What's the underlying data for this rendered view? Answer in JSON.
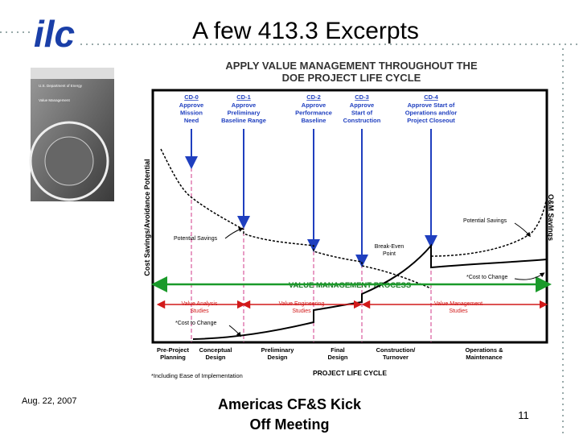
{
  "header": {
    "logo": "ilc",
    "title": "A few 413.3 Excerpts"
  },
  "thumbnail": {
    "lines": [
      "U.S. Department of Energy",
      "Value Management"
    ]
  },
  "diagram": {
    "title": [
      "APPLY VALUE MANAGEMENT THROUGHOUT THE",
      "DOE PROJECT LIFE CYCLE"
    ],
    "milestones": [
      {
        "code": "CD-0",
        "label": [
          "Approve",
          "Mission",
          "Need"
        ]
      },
      {
        "code": "CD-1",
        "label": [
          "Approve",
          "Preliminary",
          "Baseline Range"
        ]
      },
      {
        "code": "CD-2",
        "label": [
          "Approve",
          "Performance",
          "Baseline"
        ]
      },
      {
        "code": "CD-3",
        "label": [
          "Approve",
          "Start of",
          "Construction"
        ]
      },
      {
        "code": "CD-4",
        "label": [
          "Approve Start of",
          "Operations and/or",
          "Project Closeout"
        ]
      }
    ],
    "y_axis": "Cost Savings/Avoidance Potential",
    "right_axis": "O&M Savings",
    "annotations": {
      "potential_savings_left": "Potential Savings",
      "potential_savings_right": "Potential Savings",
      "break_even": [
        "Break-Even",
        "Point"
      ],
      "cost_to_change_right": "*Cost to Change",
      "cost_to_change_left": "*Cost to Change",
      "vm_process": "VALUE MANAGEMENT PROCESS",
      "value_analysis": [
        "Value Analysis",
        "Studies"
      ],
      "value_engineering": [
        "Value Engineering",
        "Studies"
      ],
      "value_management": [
        "Value Management",
        "Studies"
      ]
    },
    "phases": [
      [
        "Pre-Project",
        "Planning"
      ],
      [
        "Conceptual",
        "Design"
      ],
      [
        "Preliminary",
        "Design"
      ],
      [
        "Final",
        "Design"
      ],
      [
        "Construction/",
        "Turnover"
      ],
      [
        "Operations &",
        "Maintenance"
      ]
    ],
    "footnote": "*Including Ease of Implementation",
    "x_axis": "PROJECT LIFE CYCLE"
  },
  "footer": {
    "date": "Aug. 22, 2007",
    "meeting": [
      "Americas CF&S Kick",
      "Off Meeting"
    ],
    "page": "11"
  }
}
